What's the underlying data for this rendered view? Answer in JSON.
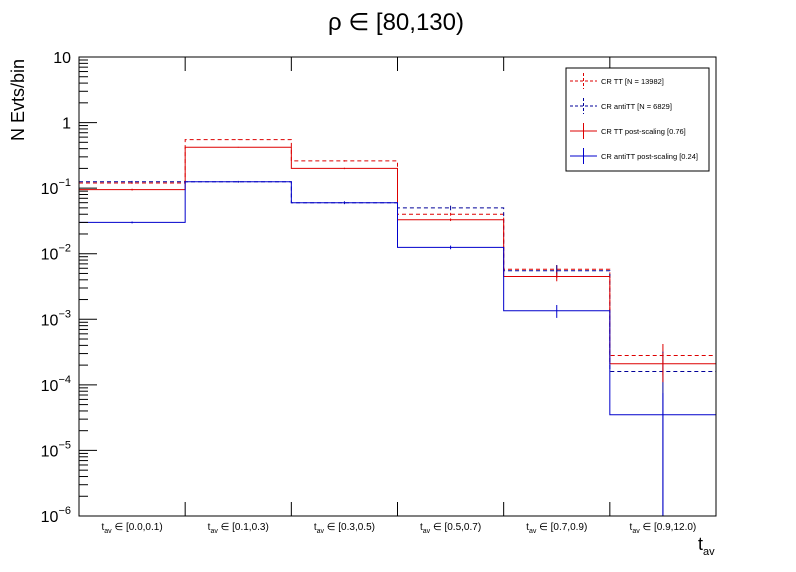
{
  "chart_data": {
    "type": "histogram",
    "title": "ρ ∈ [80,130)",
    "ylabel": "N Evts/bin",
    "xlabel": {
      "main": "t",
      "sub": "av"
    },
    "yscale": "log",
    "ylim": [
      1e-06,
      10
    ],
    "ytick_labels": [
      {
        "value": 10,
        "base": "10",
        "exp": ""
      },
      {
        "value": 1,
        "base": "1",
        "exp": ""
      },
      {
        "value": 0.1,
        "base": "10",
        "exp": "−1"
      },
      {
        "value": 0.01,
        "base": "10",
        "exp": "−2"
      },
      {
        "value": 0.001,
        "base": "10",
        "exp": "−3"
      },
      {
        "value": 0.0001,
        "base": "10",
        "exp": "−4"
      },
      {
        "value": 1e-05,
        "base": "10",
        "exp": "−5"
      },
      {
        "value": 1e-06,
        "base": "10",
        "exp": "−6"
      }
    ],
    "categories": [
      {
        "main": "t",
        "sub": "av",
        "rest": " ∈ [0.0,0.1)"
      },
      {
        "main": "t",
        "sub": "av",
        "rest": " ∈ [0.1,0.3)"
      },
      {
        "main": "t",
        "sub": "av",
        "rest": " ∈ [0.3,0.5)"
      },
      {
        "main": "t",
        "sub": "av",
        "rest": " ∈ [0.5,0.7)"
      },
      {
        "main": "t",
        "sub": "av",
        "rest": " ∈ [0.7,0.9)"
      },
      {
        "main": "t",
        "sub": "av",
        "rest": " ∈ [0.9,12.0)"
      }
    ],
    "series": [
      {
        "name": "CR TT [N = 13982]",
        "color": "#dd0000",
        "style": "dashed",
        "values": [
          0.12,
          0.55,
          0.26,
          0.04,
          0.0058,
          0.00028
        ],
        "errors": [
          0.004,
          0.008,
          0.006,
          0.002,
          0.0009,
          0.00014
        ]
      },
      {
        "name": "CR antiTT [N = 6829]",
        "color": "#000099",
        "style": "dashed",
        "values": [
          0.125,
          0.125,
          0.06,
          0.05,
          0.0055,
          0.00016
        ],
        "errors": [
          0.004,
          0.004,
          0.003,
          0.004,
          0.0012,
          0.00016
        ]
      },
      {
        "name": "CR TT post-scaling [0.76]",
        "color": "#dd0000",
        "style": "solid",
        "values": [
          0.095,
          0.42,
          0.2,
          0.033,
          0.0045,
          0.00021
        ],
        "errors": [
          0.003,
          0.006,
          0.005,
          0.0015,
          0.0007,
          0.0001
        ]
      },
      {
        "name": "CR antiTT post-scaling [0.24]",
        "color": "#0000cc",
        "style": "solid",
        "values": [
          0.03,
          0.125,
          0.06,
          0.0125,
          0.00135,
          3.5e-05
        ],
        "errors": [
          0.001,
          0.001,
          0.0008,
          0.0008,
          0.0003,
          4e-05
        ]
      }
    ],
    "legend_position": "top-right"
  }
}
